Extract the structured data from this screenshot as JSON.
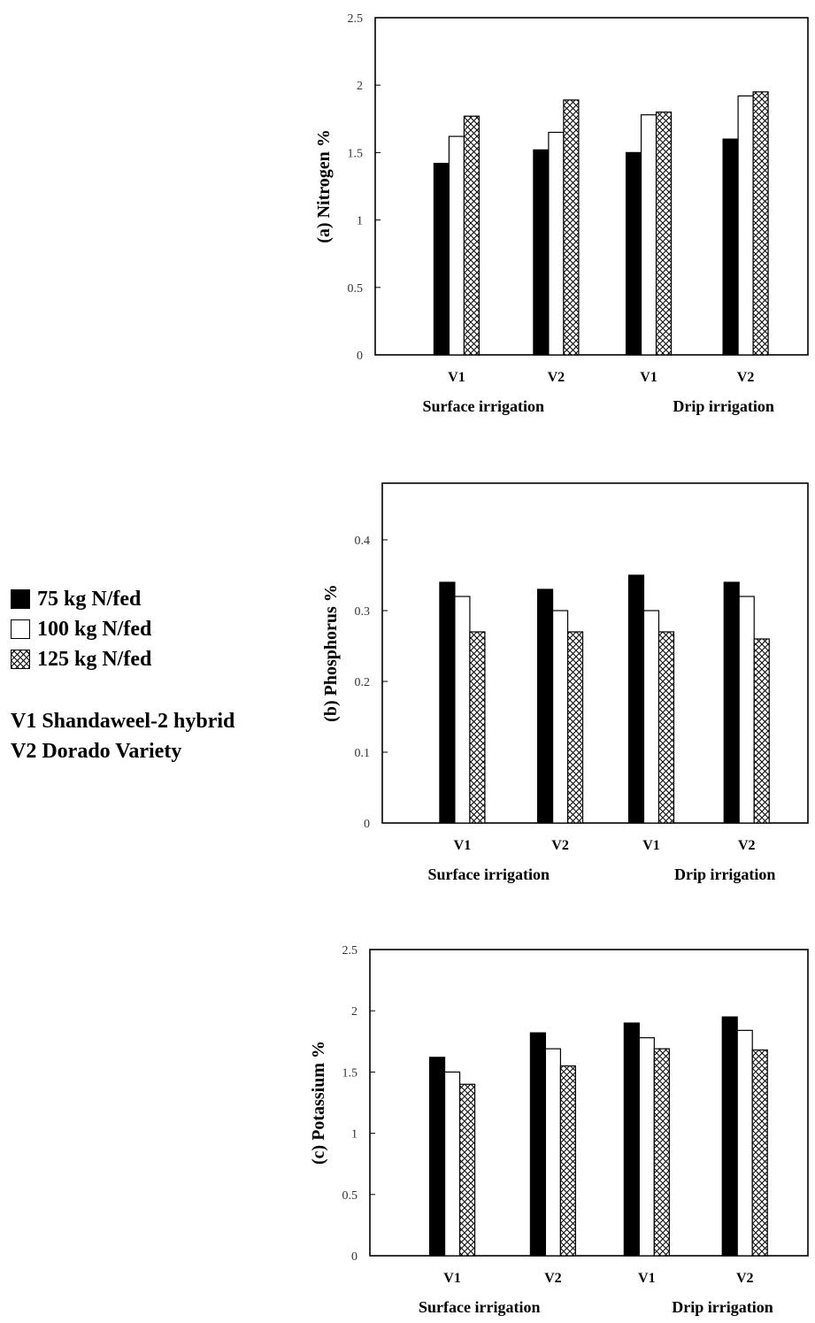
{
  "legend": {
    "items": [
      {
        "label": "75 kg N/fed",
        "swatch": "solid"
      },
      {
        "label": "100 kg N/fed",
        "swatch": "open"
      },
      {
        "label": "125 kg N/fed",
        "swatch": "crosshatch"
      }
    ],
    "varieties": [
      "V1 Shandaweel-2 hybrid",
      "V2 Dorado Variety"
    ]
  },
  "chart_data": [
    {
      "type": "bar",
      "ylabel": "(a)  Nitrogen %",
      "ylim": [
        0,
        2.5
      ],
      "yticks": [
        "0",
        "0.5",
        "1",
        "1.5",
        "2",
        "2.5"
      ],
      "categories": [
        "V1",
        "V2",
        "V1",
        "V2"
      ],
      "groups": [
        "Surface irrigation",
        "Drip irrigation"
      ],
      "series": [
        {
          "name": "75 kg N/fed",
          "values": [
            1.42,
            1.52,
            1.5,
            1.6
          ]
        },
        {
          "name": "100 kg N/fed",
          "values": [
            1.62,
            1.65,
            1.78,
            1.92
          ]
        },
        {
          "name": "125 kg N/fed",
          "values": [
            1.77,
            1.89,
            1.8,
            1.95
          ]
        }
      ]
    },
    {
      "type": "bar",
      "ylabel": "(b)  Phosphorus %",
      "ylim": [
        0,
        0.48
      ],
      "yticks": [
        "0",
        "0.1",
        "0.2",
        "0.3",
        "0.4"
      ],
      "categories": [
        "V1",
        "V2",
        "V1",
        "V2"
      ],
      "groups": [
        "Surface irrigation",
        "Drip irrigation"
      ],
      "series": [
        {
          "name": "75 kg N/fed",
          "values": [
            0.34,
            0.33,
            0.35,
            0.34
          ]
        },
        {
          "name": "100 kg N/fed",
          "values": [
            0.32,
            0.3,
            0.3,
            0.32
          ]
        },
        {
          "name": "125 kg N/fed",
          "values": [
            0.27,
            0.27,
            0.27,
            0.26
          ]
        }
      ]
    },
    {
      "type": "bar",
      "ylabel": "(c)  Potassium %",
      "ylim": [
        0,
        2.5
      ],
      "yticks": [
        "0",
        "0.5",
        "1",
        "1.5",
        "2",
        "2.5"
      ],
      "categories": [
        "V1",
        "V2",
        "V1",
        "V2"
      ],
      "groups": [
        "Surface irrigation",
        "Drip irrigation"
      ],
      "series": [
        {
          "name": "75 kg N/fed",
          "values": [
            1.62,
            1.82,
            1.9,
            1.95
          ]
        },
        {
          "name": "100 kg N/fed",
          "values": [
            1.5,
            1.69,
            1.78,
            1.84
          ]
        },
        {
          "name": "125 kg N/fed",
          "values": [
            1.4,
            1.55,
            1.69,
            1.68
          ]
        }
      ]
    }
  ]
}
